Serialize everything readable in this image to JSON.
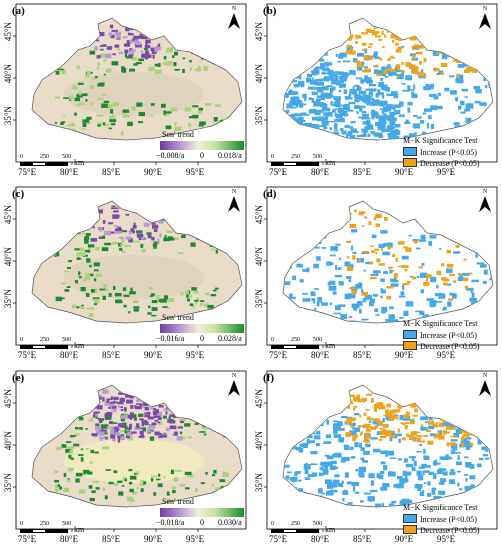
{
  "colors": {
    "sen_decrease": "#7a4aa8",
    "sen_neutral": "#e9dcc8",
    "sen_increase": "#1d8a33",
    "mk_increase": "#45a9e8",
    "mk_decrease": "#f0a31a"
  },
  "axes": {
    "lat_labels": [
      "45°N",
      "40°N",
      "35°N"
    ],
    "lon_labels": [
      "75°E",
      "80°E",
      "85°E",
      "90°E",
      "95°E"
    ]
  },
  "scalebar": {
    "ticks": [
      "0",
      "250",
      "500"
    ],
    "unit": "km"
  },
  "north_arrow": "N",
  "mk_legend": {
    "title": "M−K Significance Test",
    "increase": "Increase (P<0.05)",
    "decrease": "Decrease (P<0.05)"
  },
  "panels": [
    {
      "label": "(a)",
      "type": "sen",
      "legend_title": "Sen' trend",
      "min": "−0.008/a",
      "mid": "0",
      "max": "0.018/a",
      "style": "a"
    },
    {
      "label": "(b)",
      "type": "mk",
      "style": "b"
    },
    {
      "label": "(c)",
      "type": "sen",
      "legend_title": "Sen' trend",
      "min": "−0.016/a",
      "mid": "0",
      "max": "0.028/a",
      "style": "c"
    },
    {
      "label": "(d)",
      "type": "mk",
      "style": "d"
    },
    {
      "label": "(e)",
      "type": "sen",
      "legend_title": "Sen' trend",
      "min": "−0.018/a",
      "mid": "0",
      "max": "0.030/a",
      "style": "e"
    },
    {
      "label": "(f)",
      "type": "mk",
      "style": "f"
    }
  ]
}
